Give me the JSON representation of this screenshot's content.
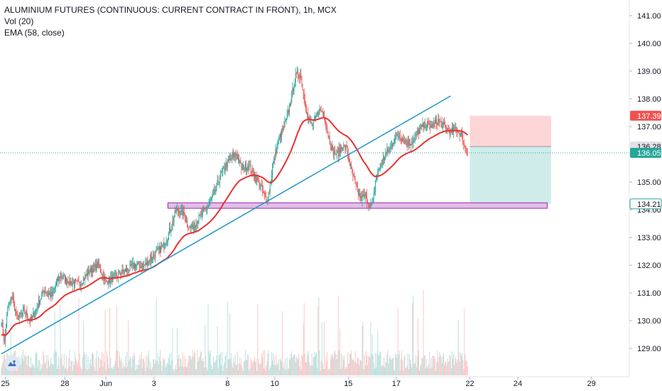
{
  "legend": {
    "title": "ALUMINIUM FUTURES (CONTINUOUS: CURRENT CONTRACT IN FRONT), 1h, MCX",
    "vol": "Vol (20)",
    "ema": "EMA (58, close)"
  },
  "colors": {
    "up": "#26a69a",
    "down": "#ef5350",
    "ema": "#e8322f",
    "trendline": "#2196c8",
    "zone_fill": "#e1bee7",
    "zone_border": "#9c27b0",
    "stop_fill": "#fcd6d6",
    "target_fill": "#cfecea",
    "current_line": "#26a69a"
  },
  "chart_data": {
    "type": "candlestick",
    "y_axis": {
      "min": 128.2,
      "max": 141.7,
      "ticks": [
        "141.00",
        "140.00",
        "139.00",
        "138.00",
        "137.00",
        "136.00",
        "135.00",
        "134.00",
        "133.00",
        "132.00",
        "131.00",
        "130.00",
        "129.00"
      ],
      "tick_values": [
        141,
        140,
        139,
        138,
        137,
        136,
        135,
        134,
        133,
        132,
        131,
        130,
        129
      ]
    },
    "x_axis": {
      "labels": [
        "25",
        "28",
        "Jun",
        "3",
        "8",
        "10",
        "15",
        "17",
        "22",
        "24",
        "29"
      ],
      "label_bars": [
        5,
        82,
        135,
        197,
        292,
        353,
        448,
        510,
        605,
        667,
        762
      ]
    },
    "price_badges": [
      {
        "value": "137.39",
        "style": "red"
      },
      {
        "value": "136.28",
        "style": "grey"
      },
      {
        "value": "136.05",
        "style": "green"
      },
      {
        "value": "134.21",
        "style": "green-outline"
      }
    ],
    "support_zone": {
      "top": 134.25,
      "bottom": 134.05,
      "from_bar": 215,
      "to_bar": 705
    },
    "trendline": {
      "from": {
        "bar": 0,
        "price": 128.8
      },
      "to": {
        "bar": 580,
        "price": 138.1
      }
    },
    "position": {
      "entry": 136.28,
      "stop": 137.39,
      "target": 134.21,
      "from_bar": 605,
      "to_bar": 710
    },
    "current_price": 136.05,
    "series_anchors": [
      [
        0,
        130.0
      ],
      [
        4,
        129.2
      ],
      [
        8,
        130.4
      ],
      [
        14,
        130.9
      ],
      [
        20,
        130.1
      ],
      [
        30,
        130.3
      ],
      [
        38,
        130.0
      ],
      [
        46,
        130.5
      ],
      [
        55,
        131.1
      ],
      [
        65,
        130.9
      ],
      [
        75,
        131.6
      ],
      [
        88,
        131.4
      ],
      [
        100,
        131.3
      ],
      [
        114,
        131.8
      ],
      [
        125,
        132.0
      ],
      [
        135,
        131.4
      ],
      [
        148,
        131.6
      ],
      [
        160,
        131.8
      ],
      [
        172,
        132.0
      ],
      [
        185,
        132.0
      ],
      [
        198,
        132.4
      ],
      [
        210,
        132.7
      ],
      [
        218,
        133.3
      ],
      [
        226,
        134.0
      ],
      [
        234,
        133.9
      ],
      [
        244,
        133.3
      ],
      [
        255,
        133.7
      ],
      [
        266,
        134.1
      ],
      [
        274,
        134.5
      ],
      [
        282,
        135.2
      ],
      [
        290,
        135.6
      ],
      [
        298,
        135.9
      ],
      [
        304,
        136.0
      ],
      [
        310,
        135.5
      ],
      [
        318,
        135.6
      ],
      [
        326,
        135.3
      ],
      [
        334,
        134.9
      ],
      [
        342,
        134.3
      ],
      [
        346,
        134.7
      ],
      [
        350,
        135.5
      ],
      [
        356,
        136.3
      ],
      [
        362,
        136.8
      ],
      [
        368,
        137.2
      ],
      [
        374,
        138.0
      ],
      [
        380,
        138.8
      ],
      [
        386,
        138.9
      ],
      [
        390,
        138.2
      ],
      [
        396,
        137.3
      ],
      [
        402,
        137.0
      ],
      [
        410,
        137.6
      ],
      [
        416,
        137.5
      ],
      [
        422,
        136.7
      ],
      [
        428,
        136.1
      ],
      [
        434,
        136.0
      ],
      [
        440,
        136.3
      ],
      [
        446,
        136.2
      ],
      [
        452,
        135.4
      ],
      [
        458,
        134.8
      ],
      [
        464,
        134.4
      ],
      [
        470,
        134.5
      ],
      [
        476,
        134.1
      ],
      [
        480,
        134.3
      ],
      [
        484,
        135.2
      ],
      [
        490,
        135.6
      ],
      [
        496,
        136.0
      ],
      [
        502,
        136.2
      ],
      [
        508,
        136.6
      ],
      [
        514,
        136.7
      ],
      [
        520,
        136.5
      ],
      [
        526,
        136.4
      ],
      [
        532,
        136.5
      ],
      [
        540,
        136.9
      ],
      [
        548,
        137.1
      ],
      [
        556,
        137.0
      ],
      [
        564,
        137.2
      ],
      [
        572,
        137.0
      ],
      [
        580,
        136.8
      ],
      [
        588,
        136.9
      ],
      [
        594,
        136.7
      ],
      [
        598,
        136.3
      ],
      [
        602,
        136.05
      ]
    ],
    "ema_period": 58
  }
}
